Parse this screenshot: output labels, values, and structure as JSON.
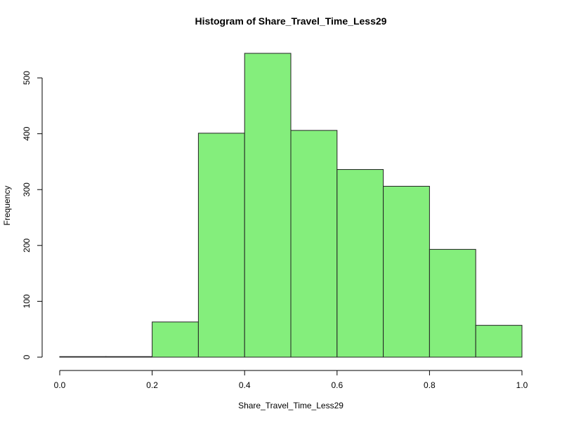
{
  "chart_data": {
    "type": "bar",
    "subtype": "histogram",
    "title": "Histogram of Share_Travel_Time_Less29",
    "xlabel": "Share_Travel_Time_Less29",
    "ylabel": "Frequency",
    "bin_edges": [
      0.0,
      0.1,
      0.2,
      0.3,
      0.4,
      0.5,
      0.6,
      0.7,
      0.8,
      0.9,
      1.0
    ],
    "values": [
      1,
      1,
      63,
      401,
      544,
      406,
      336,
      306,
      193,
      57
    ],
    "xlim": [
      0.0,
      1.0
    ],
    "ylim": [
      0,
      544
    ],
    "x_ticks": [
      "0.0",
      "0.2",
      "0.4",
      "0.6",
      "0.8",
      "1.0"
    ],
    "y_ticks": [
      "0",
      "100",
      "200",
      "300",
      "400",
      "500"
    ],
    "grid": false,
    "legend": "none",
    "bar_color": "#84ee7c",
    "border_color": "#222222"
  }
}
